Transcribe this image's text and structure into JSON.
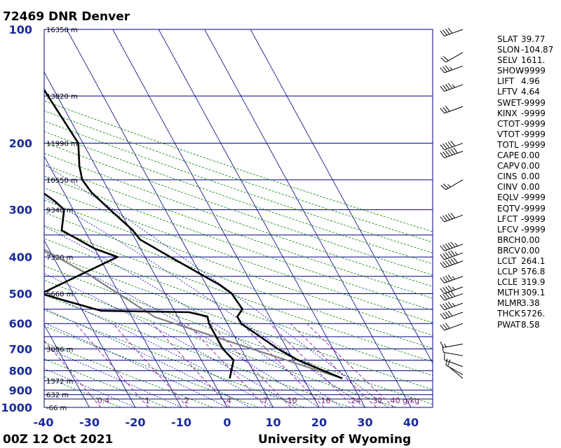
{
  "header": {
    "station": "72469 DNR Denver"
  },
  "footer": {
    "time": "00Z 12 Oct 2021",
    "source": "University of Wyoming"
  },
  "colors": {
    "frame": "#000080",
    "isobar": "#000080",
    "isotherm": "#000080",
    "dry_adiabat": "#008000",
    "moist_adiabat": "#0000a0",
    "mixing_ratio": "#800080",
    "temperature": "#000000",
    "parcel": "#808080",
    "label": "#1a2a9a"
  },
  "chart_data": {
    "type": "skew-t",
    "x_ticks": [
      -40,
      -30,
      -20,
      -10,
      0,
      10,
      20,
      30,
      40
    ],
    "p_labels": [
      100,
      200,
      300,
      400,
      500,
      600,
      700,
      800,
      900,
      1000
    ],
    "isobars": [
      100,
      150,
      200,
      250,
      300,
      350,
      400,
      450,
      500,
      550,
      600,
      650,
      700,
      750,
      800,
      850,
      900,
      925,
      950,
      1000
    ],
    "heights": [
      {
        "p": 100,
        "label": "16350 m"
      },
      {
        "p": 150,
        "label": "13820 m"
      },
      {
        "p": 200,
        "label": "11990 m"
      },
      {
        "p": 250,
        "label": "10550 m"
      },
      {
        "p": 300,
        "label": "9340 m"
      },
      {
        "p": 400,
        "label": "7320 m"
      },
      {
        "p": 500,
        "label": "5660 m"
      },
      {
        "p": 700,
        "label": "3006 m"
      },
      {
        "p": 850,
        "label": "1372 m"
      },
      {
        "p": 925,
        "label": "632 m"
      },
      {
        "p": 1000,
        "label": "-66 m"
      }
    ],
    "mixing_ratio_labels": [
      "0.4",
      "1",
      "2",
      "4",
      "7",
      "10",
      "16",
      "24",
      "32",
      "40 g/kg"
    ],
    "temperature": [
      {
        "p": 838,
        "t": 28.5
      },
      {
        "p": 750,
        "t": 21
      },
      {
        "p": 700,
        "t": 18
      },
      {
        "p": 600,
        "t": 13
      },
      {
        "p": 575,
        "t": 13
      },
      {
        "p": 550,
        "t": 15
      },
      {
        "p": 500,
        "t": 14.5
      },
      {
        "p": 475,
        "t": 13
      },
      {
        "p": 400,
        "t": 5.5
      },
      {
        "p": 360,
        "t": 1
      },
      {
        "p": 340,
        "t": 0.5
      },
      {
        "p": 300,
        "t": -2
      },
      {
        "p": 270,
        "t": -4
      },
      {
        "p": 250,
        "t": -4.5
      },
      {
        "p": 230,
        "t": -3.5
      },
      {
        "p": 200,
        "t": -1
      },
      {
        "p": 150,
        "t": -2
      },
      {
        "p": 110,
        "t": -3
      },
      {
        "p": 100,
        "t": -3
      }
    ],
    "dewpoint": [
      {
        "p": 838,
        "t": 4
      },
      {
        "p": 750,
        "t": 7
      },
      {
        "p": 700,
        "t": 6
      },
      {
        "p": 600,
        "t": 6
      },
      {
        "p": 575,
        "t": 6.5
      },
      {
        "p": 560,
        "t": 3
      },
      {
        "p": 555,
        "t": -16
      },
      {
        "p": 520,
        "t": -23
      },
      {
        "p": 500,
        "t": -27
      },
      {
        "p": 400,
        "t": -6
      },
      {
        "p": 380,
        "t": -10
      },
      {
        "p": 340,
        "t": -15
      },
      {
        "p": 300,
        "t": -12
      },
      {
        "p": 285,
        "t": -13
      },
      {
        "p": 250,
        "t": -17
      },
      {
        "p": 230,
        "t": -17.5
      },
      {
        "p": 200,
        "t": -17.5
      },
      {
        "p": 150,
        "t": -24
      },
      {
        "p": 112,
        "t": -30
      },
      {
        "p": 100,
        "t": -35
      }
    ],
    "parcel": [
      {
        "p": 838,
        "t": 28.5
      },
      {
        "p": 577,
        "t": -5
      },
      {
        "p": 450,
        "t": -14
      },
      {
        "p": 350,
        "t": -25
      },
      {
        "p": 300,
        "t": -33
      },
      {
        "p": 250,
        "t": -43
      },
      {
        "p": 200,
        "t": -56
      },
      {
        "p": 150,
        "t": -72
      },
      {
        "p": 100,
        "t": -94
      }
    ],
    "winds": [
      {
        "p": 100,
        "dir": 250,
        "spd": 40
      },
      {
        "p": 115,
        "dir": 240,
        "spd": 20
      },
      {
        "p": 125,
        "dir": 250,
        "spd": 35
      },
      {
        "p": 140,
        "dir": 250,
        "spd": 45
      },
      {
        "p": 160,
        "dir": 250,
        "spd": 30
      },
      {
        "p": 200,
        "dir": 250,
        "spd": 50
      },
      {
        "p": 210,
        "dir": 250,
        "spd": 60
      },
      {
        "p": 250,
        "dir": 240,
        "spd": 25
      },
      {
        "p": 310,
        "dir": 250,
        "spd": 50
      },
      {
        "p": 370,
        "dir": 250,
        "spd": 55
      },
      {
        "p": 390,
        "dir": 250,
        "spd": 55
      },
      {
        "p": 410,
        "dir": 250,
        "spd": 60
      },
      {
        "p": 450,
        "dir": 250,
        "spd": 45
      },
      {
        "p": 480,
        "dir": 250,
        "spd": 45
      },
      {
        "p": 500,
        "dir": 250,
        "spd": 50
      },
      {
        "p": 530,
        "dir": 250,
        "spd": 45
      },
      {
        "p": 560,
        "dir": 250,
        "spd": 40
      },
      {
        "p": 600,
        "dir": 250,
        "spd": 30
      },
      {
        "p": 680,
        "dir": 260,
        "spd": 15
      },
      {
        "p": 730,
        "dir": 280,
        "spd": 10
      },
      {
        "p": 780,
        "dir": 290,
        "spd": 10
      },
      {
        "p": 820,
        "dir": 300,
        "spd": 10
      },
      {
        "p": 838,
        "dir": 310,
        "spd": 10
      }
    ]
  },
  "indices": [
    {
      "key": "SLAT",
      "value": "39.77"
    },
    {
      "key": "SLON",
      "value": "-104.87"
    },
    {
      "key": "SELV",
      "value": "1611."
    },
    {
      "key": "SHOW",
      "value": "-9999"
    },
    {
      "key": "LIFT",
      "value": "4.96"
    },
    {
      "key": "LFTV",
      "value": "4.64"
    },
    {
      "key": "SWET",
      "value": "-9999"
    },
    {
      "key": "KINX",
      "value": "-9999"
    },
    {
      "key": "CTOT",
      "value": "-9999"
    },
    {
      "key": "VTOT",
      "value": "-9999"
    },
    {
      "key": "TOTL",
      "value": "-9999"
    },
    {
      "key": "CAPE",
      "value": "0.00"
    },
    {
      "key": "CAPV",
      "value": "0.00"
    },
    {
      "key": "CINS",
      "value": "0.00"
    },
    {
      "key": "CINV",
      "value": "0.00"
    },
    {
      "key": "EQLV",
      "value": "-9999"
    },
    {
      "key": "EQTV",
      "value": "-9999"
    },
    {
      "key": "LFCT",
      "value": "-9999"
    },
    {
      "key": "LFCV",
      "value": "-9999"
    },
    {
      "key": "BRCH",
      "value": "0.00"
    },
    {
      "key": "BRCV",
      "value": "0.00"
    },
    {
      "key": "LCLT",
      "value": "264.1"
    },
    {
      "key": "LCLP",
      "value": "576.8"
    },
    {
      "key": "LCLE",
      "value": "319.9"
    },
    {
      "key": "MLTH",
      "value": "309.1"
    },
    {
      "key": "MLMR",
      "value": "3.38"
    },
    {
      "key": "THCK",
      "value": "5726."
    },
    {
      "key": "PWAT",
      "value": "8.58"
    }
  ]
}
